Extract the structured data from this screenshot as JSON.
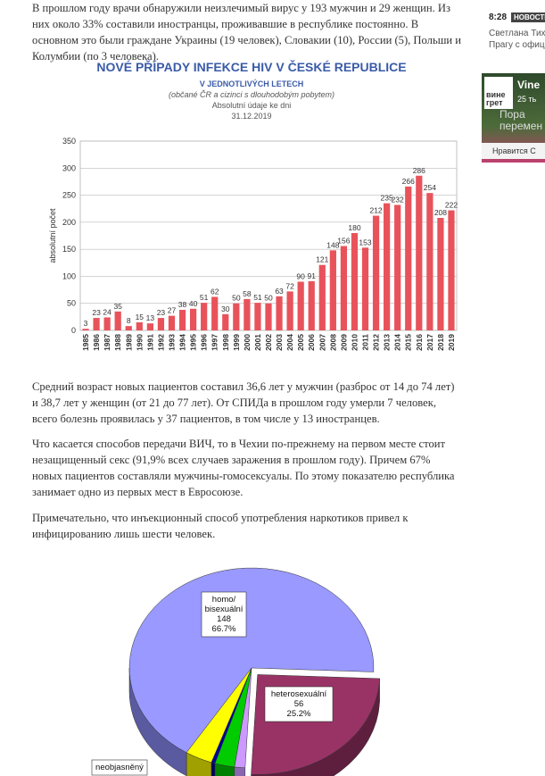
{
  "article": {
    "paragraphs": [
      "В прошлом году врачи обнаружили неизлечимый вирус у 193 мужчин и 29 женщин. Из них около 33% составили иностранцы, проживавшие в республике постоянно. В основном это были граждане Украины (19 человек), Словакии (10), России (5), Польши и Колумбии (по 3 человека).",
      "Средний возраст новых пациентов составил 36,6 лет у мужчин (разброс от 14 до 74 лет) и 38,7 лет у женщин (от 21 до 77 лет). От СПИДа в прошлом году умерли 7 человек, всего болезнь проявилась у 37 пациентов, в том числе у 13 иностранцев.",
      "Что касается способов передачи ВИЧ, то в Чехии по-прежнему на первом месте стоит незащищенный секс (91,9% всех случаев заражения в прошлом году). Причем 67% новых пациентов составляли мужчины-гомосексуалы. По этому показателю республика занимает одно из первых мест в Евросоюзе.",
      "Примечательно, что инъекционный способ употребления наркотиков привел к инфицированию лишь шести человек."
    ]
  },
  "bar_chart": {
    "type": "bar",
    "title": "NOVÉ PŘÍPADY INFEKCE HIV V ČESKÉ REPUBLICE",
    "subtitle": "V JEDNOTLIVÝCH LETECH",
    "note": "(občané ČR a cizinci s dlouhodobým pobytem)",
    "note2": "Absolutní údaje ke dni",
    "date": "31.12.2019",
    "y_label": "absolutní počet",
    "categories": [
      "1985",
      "1986",
      "1987",
      "1988",
      "1989",
      "1990",
      "1991",
      "1992",
      "1993",
      "1994",
      "1995",
      "1996",
      "1997",
      "1998",
      "1999",
      "2000",
      "2001",
      "2002",
      "2003",
      "2004",
      "2005",
      "2006",
      "2007",
      "2008",
      "2009",
      "2010",
      "2011",
      "2012",
      "2013",
      "2014",
      "2015",
      "2016",
      "2017",
      "2018",
      "2019"
    ],
    "values": [
      3,
      23,
      24,
      35,
      8,
      15,
      13,
      23,
      27,
      38,
      40,
      51,
      62,
      30,
      50,
      58,
      51,
      50,
      63,
      72,
      90,
      91,
      121,
      148,
      156,
      180,
      153,
      212,
      235,
      232,
      266,
      286,
      254,
      208,
      222
    ],
    "color": "#e8535b",
    "ylim": [
      0,
      350
    ],
    "yticks": [
      0,
      50,
      100,
      150,
      200,
      250,
      300,
      350
    ],
    "grid": true
  },
  "pie_chart": {
    "type": "pie",
    "slices": [
      {
        "lines": [
          "heterosexuální"
        ],
        "count": "56",
        "value": 25.2,
        "value_label": "25.2%",
        "color": "#993366",
        "side": "#5e1f3f"
      },
      {
        "lines": null,
        "value": 1.4,
        "color": "#cc99ff",
        "side": "#8a66b0"
      },
      {
        "lines": null,
        "value": 2.6,
        "color": "#00cc00",
        "side": "#008000"
      },
      {
        "lines": null,
        "value": 0.5,
        "color": "#000099",
        "side": "#000060"
      },
      {
        "lines": [
          "neobjasněný"
        ],
        "value": 3.6,
        "color": "#ffff00",
        "side": "#a0a000"
      },
      {
        "lines": [
          "homo/",
          "bisexuální"
        ],
        "count": "148",
        "value": 66.7,
        "value_label": "66.7%",
        "color": "#9999ff",
        "side": "#5a5aa0"
      }
    ]
  },
  "sidebar": {
    "time": "8:28",
    "badge": "НОВОСТИ",
    "line1": "Светлана Тих",
    "line2": "Прагу с офиц",
    "ad_title": "Vine",
    "ad_sub": "25 ть",
    "ad_text1": "Пора",
    "ad_text2": "перемен",
    "logo1": "вине",
    "logo2": "грет",
    "like": "Нравится С"
  }
}
